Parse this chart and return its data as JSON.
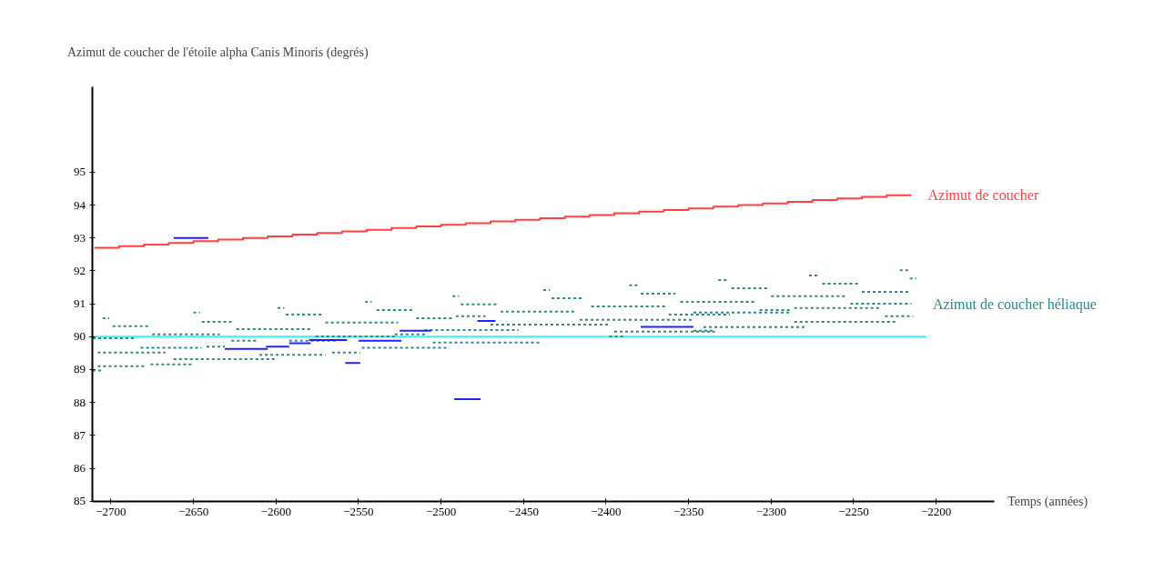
{
  "chart_data": {
    "type": "line",
    "ylabel": "Azimut de coucher de l'étoile alpha Canis Minoris (degrés)",
    "xlabel": "Temps (années)",
    "xlim": [
      -2711,
      -2165
    ],
    "ylim": [
      85,
      97.6
    ],
    "xticks": [
      -2700,
      -2650,
      -2600,
      -2550,
      -2500,
      -2450,
      -2400,
      -2350,
      -2300,
      -2250,
      -2200
    ],
    "yticks": [
      85,
      86,
      87,
      88,
      89,
      90,
      91,
      92,
      93,
      94,
      95
    ],
    "grid": false,
    "series": [
      {
        "type": "step",
        "name": "Azimut de coucher",
        "color": "#ff4040",
        "x": [
          -2710,
          -2695,
          -2680,
          -2665,
          -2650,
          -2635,
          -2620,
          -2605,
          -2590,
          -2575,
          -2560,
          -2545,
          -2530,
          -2515,
          -2500,
          -2485,
          -2470,
          -2455,
          -2440,
          -2425,
          -2410,
          -2395,
          -2380,
          -2365,
          -2350,
          -2335,
          -2320,
          -2305,
          -2290,
          -2275,
          -2260,
          -2245,
          -2230,
          -2215
        ],
        "values": [
          92.7,
          92.75,
          92.8,
          92.85,
          92.9,
          92.95,
          93.0,
          93.05,
          93.1,
          93.15,
          93.2,
          93.25,
          93.3,
          93.35,
          93.4,
          93.45,
          93.5,
          93.55,
          93.6,
          93.65,
          93.7,
          93.75,
          93.8,
          93.85,
          93.9,
          93.95,
          94.0,
          94.05,
          94.1,
          94.15,
          94.2,
          94.25,
          94.3,
          94.3
        ]
      },
      {
        "color": "#40f0f0",
        "x": [
          -2711,
          -2206
        ],
        "values": [
          90,
          90
        ]
      },
      {
        "line_style": "dotted",
        "name": "Azimut de coucher héliaque",
        "color": "#2a8a86",
        "x": [
          -2711,
          -2685,
          null,
          -2705,
          -2701,
          null,
          -2699,
          -2677,
          null,
          -2675,
          -2634,
          null,
          -2708,
          -2667,
          null,
          -2682,
          -2645,
          null,
          -2708,
          -2679,
          null,
          -2676,
          -2651,
          null,
          -2662,
          -2599,
          null,
          -2711,
          -2705,
          null,
          -2645,
          -2627,
          null,
          -2650,
          -2646,
          null,
          -2642,
          -2631,
          null,
          -2627,
          -2612,
          null,
          -2624,
          -2579,
          null,
          -2610,
          -2570,
          null,
          -2594,
          -2572,
          null,
          -2599,
          -2595,
          null,
          -2592,
          -2563,
          null,
          -2576,
          -2528,
          null,
          -2570,
          -2526,
          null,
          -2566,
          -2549,
          null,
          -2548,
          -2495,
          null,
          -2546,
          -2542,
          null,
          -2539,
          -2517,
          null,
          -2528,
          -2508,
          null,
          -2515,
          -2493,
          null,
          -2505,
          -2440,
          null,
          -2510,
          -2453,
          null,
          -2493,
          -2489,
          null,
          -2488,
          -2466,
          null,
          -2491,
          -2473,
          null,
          -2470,
          -2398,
          null,
          -2464,
          -2419,
          null,
          -2438,
          -2434,
          null,
          -2433,
          -2413,
          null,
          -2416,
          -2347,
          null,
          -2409,
          -2364,
          null,
          -2386,
          -2381,
          null,
          -2379,
          -2358,
          null,
          -2362,
          -2325,
          null,
          -2355,
          -2310,
          null,
          -2341,
          -2279,
          null,
          -2398,
          -2389,
          null,
          -2395,
          -2334,
          null,
          -2332,
          -2326,
          null,
          -2324,
          -2302,
          null,
          -2300,
          -2254,
          null,
          -2277,
          -2271,
          null,
          -2269,
          -2247,
          null,
          -2245,
          -2216,
          null,
          -2222,
          -2216,
          null,
          -2216,
          -2212,
          null,
          -2347,
          -2288,
          null,
          -2307,
          -2288,
          null,
          -2286,
          -2233,
          null,
          -2286,
          -2224,
          null,
          -2231,
          -2214,
          null,
          -2347,
          -2334,
          null,
          -2252,
          -2215
        ],
        "values": [
          89.95,
          89.95,
          null,
          90.56,
          90.56,
          null,
          90.32,
          90.32,
          null,
          90.07,
          90.07,
          null,
          89.52,
          89.52,
          null,
          89.66,
          89.66,
          null,
          89.1,
          89.1,
          null,
          89.16,
          89.16,
          null,
          89.32,
          89.32,
          null,
          88.97,
          88.97,
          null,
          90.45,
          90.45,
          null,
          90.73,
          90.73,
          null,
          89.7,
          89.7,
          null,
          89.88,
          89.88,
          null,
          90.23,
          90.23,
          null,
          89.45,
          89.45,
          null,
          90.67,
          90.67,
          null,
          90.87,
          90.87,
          null,
          89.88,
          89.88,
          null,
          90.01,
          90.01,
          null,
          90.43,
          90.43,
          null,
          89.52,
          89.52,
          null,
          89.66,
          89.66,
          null,
          91.06,
          91.06,
          null,
          90.81,
          90.81,
          null,
          90.07,
          90.07,
          null,
          90.56,
          90.56,
          null,
          89.82,
          89.82,
          null,
          90.2,
          90.2,
          null,
          91.23,
          91.23,
          null,
          90.98,
          90.98,
          null,
          90.62,
          90.62,
          null,
          90.37,
          90.37,
          null,
          90.76,
          90.76,
          null,
          91.42,
          91.42,
          null,
          91.17,
          91.17,
          null,
          90.51,
          90.51,
          null,
          90.92,
          90.92,
          null,
          91.56,
          91.56,
          null,
          91.31,
          91.31,
          null,
          90.67,
          90.67,
          null,
          91.06,
          91.06,
          null,
          90.29,
          90.29,
          null,
          90.01,
          90.01,
          null,
          90.15,
          90.15,
          null,
          91.72,
          91.72,
          null,
          91.47,
          91.47,
          null,
          91.23,
          91.23,
          null,
          91.86,
          91.86,
          null,
          91.61,
          91.61,
          null,
          91.36,
          91.36,
          null,
          92.02,
          92.02,
          null,
          91.77,
          91.77,
          null,
          90.73,
          90.73,
          null,
          90.81,
          90.81,
          null,
          90.87,
          90.87,
          null,
          90.45,
          90.45,
          null,
          90.62,
          90.62,
          null,
          90.18,
          90.18,
          null,
          91.0,
          91.0
        ]
      },
      {
        "color": "#2020ff",
        "x": [
          -2662,
          -2641,
          null,
          -2631,
          -2605,
          null,
          -2606,
          -2592,
          null,
          -2592,
          -2579,
          null,
          -2580,
          -2557,
          null,
          -2550,
          -2524,
          null,
          -2558,
          -2549,
          null,
          -2525,
          -2506,
          null,
          -2492,
          -2476,
          null,
          -2478,
          -2467,
          null,
          -2379,
          -2347
        ],
        "values": [
          93.0,
          93.0,
          null,
          89.63,
          89.63,
          null,
          89.7,
          89.7,
          null,
          89.8,
          89.8,
          null,
          89.9,
          89.9,
          null,
          89.88,
          89.88,
          null,
          89.2,
          89.2,
          null,
          90.18,
          90.18,
          null,
          88.1,
          88.1,
          null,
          90.48,
          90.48,
          null,
          90.3,
          90.3
        ]
      }
    ]
  }
}
